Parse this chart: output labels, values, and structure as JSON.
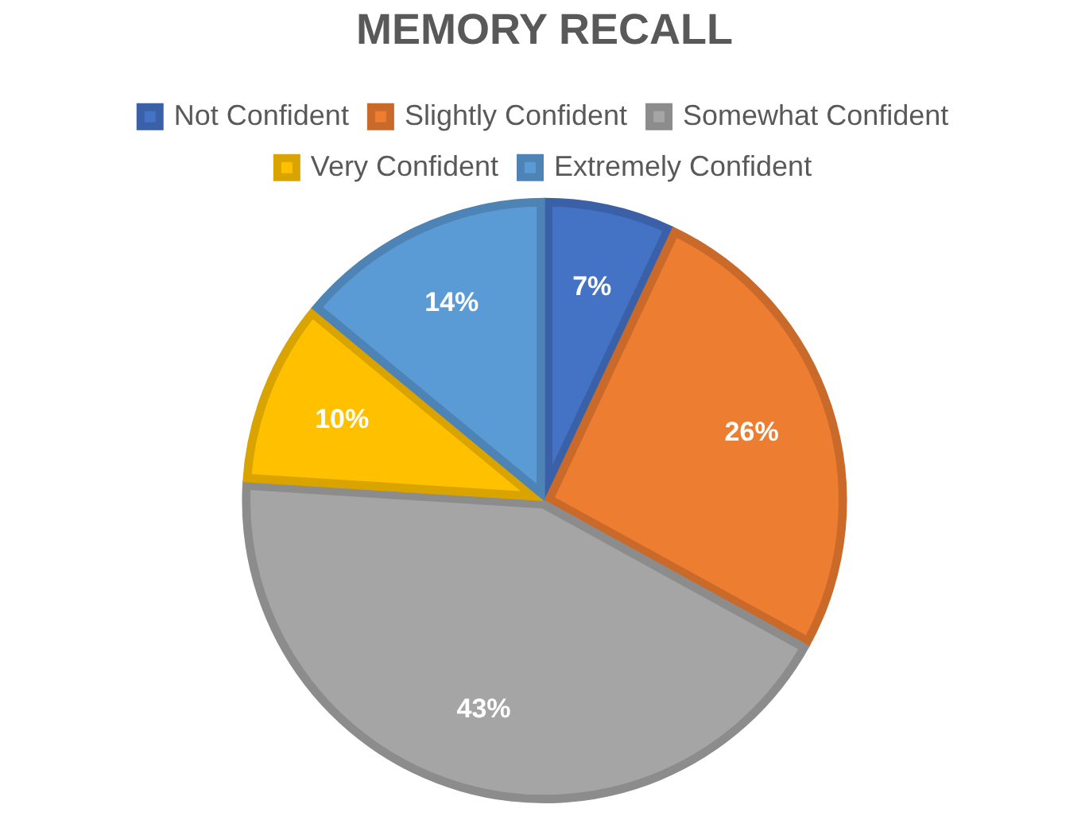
{
  "chart_data": {
    "type": "pie",
    "title": "MEMORY RECALL",
    "categories": [
      "Not Confident",
      "Slightly Confident",
      "Somewhat Confident",
      "Very Confident",
      "Extremely Confident"
    ],
    "values": [
      7,
      26,
      43,
      10,
      14
    ],
    "colors": [
      "#4472c4",
      "#ed7d31",
      "#a5a5a5",
      "#ffc000",
      "#5b9bd5"
    ],
    "value_labels": [
      "7%",
      "26%",
      "43%",
      "10%",
      "14%"
    ],
    "legend": "top"
  }
}
